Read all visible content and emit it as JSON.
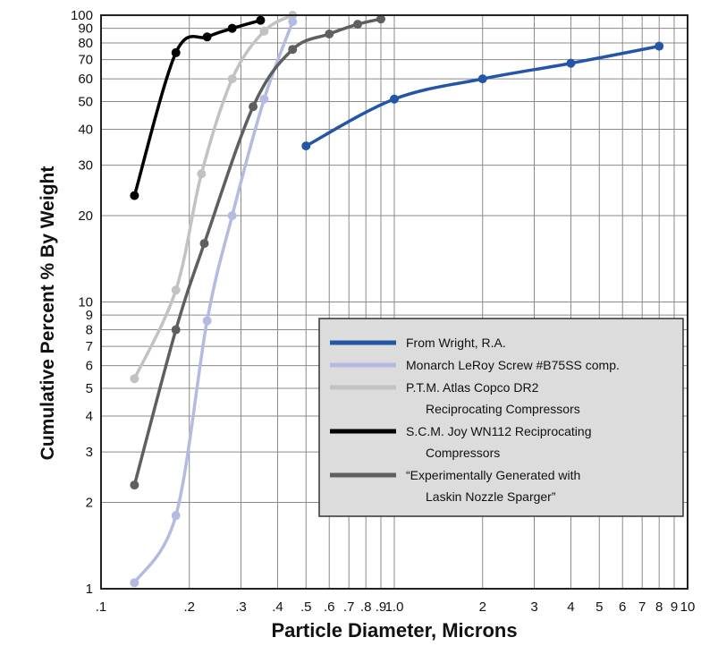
{
  "chart_data": {
    "type": "line",
    "title": "",
    "xlabel": "Particle Diameter, Microns",
    "ylabel": "Cumulative Percent % By Weight",
    "x_scale": "log",
    "y_scale": "log",
    "xlim": [
      0.1,
      10
    ],
    "ylim": [
      1,
      100
    ],
    "grid": true,
    "legend_position": "bottom-right",
    "x_ticks": [
      {
        "v": 0.1,
        "label": ".1"
      },
      {
        "v": 0.2,
        "label": ".2"
      },
      {
        "v": 0.3,
        "label": ".3"
      },
      {
        "v": 0.4,
        "label": ".4"
      },
      {
        "v": 0.5,
        "label": ".5"
      },
      {
        "v": 0.6,
        "label": ".6"
      },
      {
        "v": 0.7,
        "label": ".7"
      },
      {
        "v": 0.8,
        "label": ".8"
      },
      {
        "v": 0.9,
        "label": ".9"
      },
      {
        "v": 1.0,
        "label": "1.0"
      },
      {
        "v": 2,
        "label": "2"
      },
      {
        "v": 3,
        "label": "3"
      },
      {
        "v": 4,
        "label": "4"
      },
      {
        "v": 5,
        "label": "5"
      },
      {
        "v": 6,
        "label": "6"
      },
      {
        "v": 7,
        "label": "7"
      },
      {
        "v": 8,
        "label": "8"
      },
      {
        "v": 9,
        "label": "9"
      },
      {
        "v": 10,
        "label": "10"
      }
    ],
    "y_ticks": [
      {
        "v": 1,
        "label": "1"
      },
      {
        "v": 2,
        "label": "2"
      },
      {
        "v": 3,
        "label": "3"
      },
      {
        "v": 4,
        "label": "4"
      },
      {
        "v": 5,
        "label": "5"
      },
      {
        "v": 6,
        "label": "6"
      },
      {
        "v": 7,
        "label": "7"
      },
      {
        "v": 8,
        "label": "8"
      },
      {
        "v": 9,
        "label": "9"
      },
      {
        "v": 10,
        "label": "10"
      },
      {
        "v": 20,
        "label": "20"
      },
      {
        "v": 30,
        "label": "30"
      },
      {
        "v": 40,
        "label": "40"
      },
      {
        "v": 50,
        "label": "50"
      },
      {
        "v": 60,
        "label": "60"
      },
      {
        "v": 70,
        "label": "70"
      },
      {
        "v": 80,
        "label": "80"
      },
      {
        "v": 90,
        "label": "90"
      },
      {
        "v": 100,
        "label": "100"
      }
    ],
    "series": [
      {
        "name": "From Wright, R.A.",
        "color": "#2456a8",
        "points": [
          [
            0.5,
            35
          ],
          [
            1.0,
            51
          ],
          [
            2.0,
            60
          ],
          [
            4.0,
            68
          ],
          [
            8.0,
            78
          ]
        ]
      },
      {
        "name": "Monarch LeRoy Screw #B75SS comp.",
        "color": "#b4bae0",
        "points": [
          [
            0.13,
            1.05
          ],
          [
            0.18,
            1.8
          ],
          [
            0.23,
            8.6
          ],
          [
            0.28,
            20
          ],
          [
            0.36,
            51
          ],
          [
            0.45,
            95
          ]
        ]
      },
      {
        "name": "P.T.M. Atlas Copco DR2 Reciprocating Compressors",
        "color": "#c2c2c2",
        "points": [
          [
            0.13,
            5.4
          ],
          [
            0.18,
            11
          ],
          [
            0.22,
            28
          ],
          [
            0.28,
            60
          ],
          [
            0.36,
            88
          ],
          [
            0.45,
            100
          ]
        ]
      },
      {
        "name": "S.C.M. Joy WN112 Reciprocating Compressors",
        "color": "#000000",
        "points": [
          [
            0.13,
            23.5
          ],
          [
            0.18,
            74
          ],
          [
            0.23,
            84
          ],
          [
            0.28,
            90
          ],
          [
            0.35,
            96
          ]
        ]
      },
      {
        "name": "“Experimentally Generated with Laskin Nozzle Sparger”",
        "color": "#5f5f5f",
        "points": [
          [
            0.13,
            2.3
          ],
          [
            0.18,
            8
          ],
          [
            0.225,
            16
          ],
          [
            0.33,
            48
          ],
          [
            0.45,
            76
          ],
          [
            0.6,
            86
          ],
          [
            0.75,
            93
          ],
          [
            0.9,
            97
          ]
        ]
      }
    ]
  },
  "legend": {
    "entries": [
      {
        "lines": [
          "From Wright, R.A."
        ]
      },
      {
        "lines": [
          "Monarch LeRoy Screw #B75SS comp."
        ]
      },
      {
        "lines": [
          "P.T.M. Atlas Copco DR2",
          "Reciprocating Compressors"
        ]
      },
      {
        "lines": [
          "S.C.M. Joy WN112 Reciprocating",
          "Compressors"
        ]
      },
      {
        "lines": [
          "“Experimentally Generated with",
          "Laskin Nozzle Sparger”"
        ]
      }
    ]
  }
}
